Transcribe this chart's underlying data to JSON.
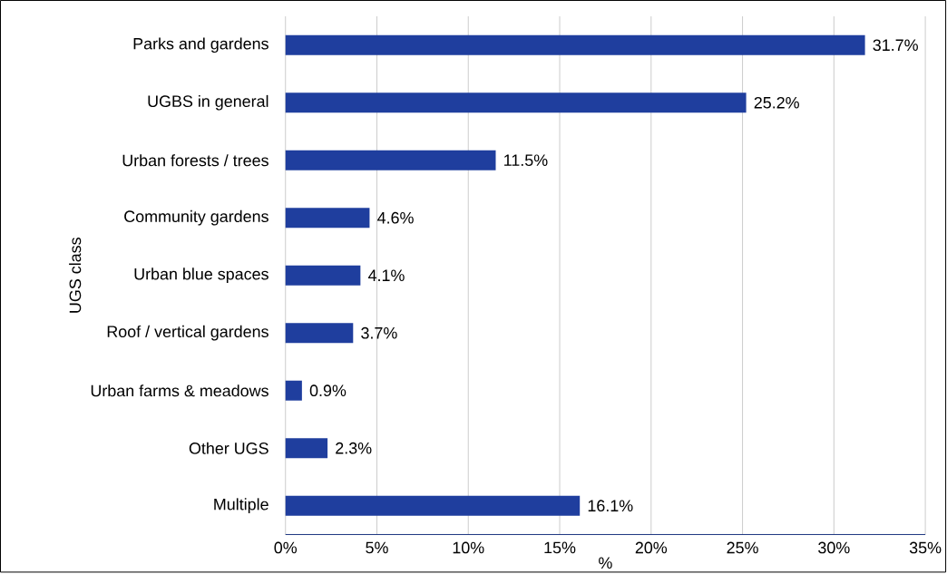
{
  "chart_data": {
    "type": "bar",
    "orientation": "horizontal",
    "xlabel": "%",
    "ylabel": "UGS class",
    "categories": [
      "Parks and gardens",
      "UGBS in general",
      "Urban forests / trees",
      "Community gardens",
      "Urban blue spaces",
      "Roof / vertical gardens",
      "Urban farms & meadows",
      "Other UGS",
      "Multiple"
    ],
    "values": [
      31.7,
      25.2,
      11.5,
      4.6,
      4.1,
      3.7,
      0.9,
      2.3,
      16.1
    ],
    "value_labels": [
      "31.7%",
      "25.2%",
      "11.5%",
      "4.6%",
      "4.1%",
      "3.7%",
      "0.9%",
      "2.3%",
      "16.1%"
    ],
    "color": "#1f3e9e",
    "xlim": [
      0,
      35
    ],
    "xticks": [
      {
        "value": 0,
        "label": "0%"
      },
      {
        "value": 5,
        "label": "5%"
      },
      {
        "value": 10,
        "label": "10%"
      },
      {
        "value": 15,
        "label": "15%"
      },
      {
        "value": 20,
        "label": "20%"
      },
      {
        "value": 25,
        "label": "25%"
      },
      {
        "value": 30,
        "label": "30%"
      },
      {
        "value": 35,
        "label": "35%"
      }
    ],
    "grid": "x"
  }
}
